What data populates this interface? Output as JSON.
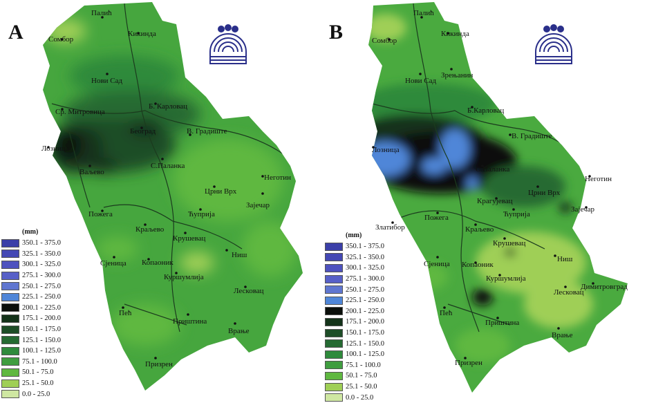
{
  "panels": [
    {
      "label": "A",
      "legend": {
        "unit": "(mm)",
        "classes": [
          {
            "range": "350.1 - 375.0",
            "color": "#3b3fa8"
          },
          {
            "range": "325.1 - 350.0",
            "color": "#4448b4"
          },
          {
            "range": "300.1 - 325.0",
            "color": "#4e52bf"
          },
          {
            "range": "275.1 - 300.0",
            "color": "#5760c8"
          },
          {
            "range": "250.1 - 275.0",
            "color": "#5f76d0"
          },
          {
            "range": "225.1 - 250.0",
            "color": "#4f86d8"
          },
          {
            "range": "200.1 - 225.0",
            "color": "#0b0f0b"
          },
          {
            "range": "175.1 - 200.0",
            "color": "#14331a"
          },
          {
            "range": "150.1 - 175.0",
            "color": "#1d4d27"
          },
          {
            "range": "125.1 - 150.0",
            "color": "#256a32"
          },
          {
            "range": "100.1 - 125.0",
            "color": "#2e8a3b"
          },
          {
            "range": "75.1 - 100.0",
            "color": "#3f9d3f"
          },
          {
            "range": "50.1 - 75.0",
            "color": "#5fb840"
          },
          {
            "range": "25.1 - 50.0",
            "color": "#9fcf56"
          },
          {
            "range": "0.0 - 25.0",
            "color": "#cfe7a2"
          }
        ]
      },
      "cities": [
        "Палић",
        "Кикинда",
        "Сомбор",
        "Нови Сад",
        "Ср. Митровица",
        "Б. Карловац",
        "Београд",
        "Лозница",
        "Ваљево",
        "С.Паланка",
        "В. Градиште",
        "Неготин",
        "Црни Врх",
        "Ћуприја",
        "Зајечар",
        "Пожега",
        "Краљево",
        "Крушевац",
        "Сјеница",
        "Копаоник",
        "Ниш",
        "Куршумлија",
        "Лесковац",
        "Пећ",
        "Приштина",
        "Врање",
        "Призрен"
      ]
    },
    {
      "label": "B",
      "legend": {
        "unit": "(mm)",
        "classes": [
          {
            "range": "350.1 - 375.0",
            "color": "#3b3fa8"
          },
          {
            "range": "325.1 - 350.0",
            "color": "#4448b4"
          },
          {
            "range": "300.1 - 325.0",
            "color": "#4e52bf"
          },
          {
            "range": "275.1 - 300.0",
            "color": "#5760c8"
          },
          {
            "range": "250.1 - 275.0",
            "color": "#5f76d0"
          },
          {
            "range": "225.1 - 250.0",
            "color": "#4f86d8"
          },
          {
            "range": "200.1 - 225.0",
            "color": "#0b0f0b"
          },
          {
            "range": "175.1 - 200.0",
            "color": "#14331a"
          },
          {
            "range": "150.1 - 175.0",
            "color": "#1d4d27"
          },
          {
            "range": "125.1 - 150.0",
            "color": "#256a32"
          },
          {
            "range": "100.1 - 125.0",
            "color": "#2e8a3b"
          },
          {
            "range": "75.1 - 100.0",
            "color": "#3f9d3f"
          },
          {
            "range": "50.1 - 75.0",
            "color": "#5fb840"
          },
          {
            "range": "25.1 - 50.0",
            "color": "#9fcf56"
          },
          {
            "range": "0.0 - 25.0",
            "color": "#cfe7a2"
          }
        ]
      },
      "cities": [
        "Палић",
        "Кикинда",
        "Сомбор",
        "Нови Сад",
        "Зрењанин",
        "Б.Карловац",
        "Лозница",
        "В. Градиште",
        "С.Паланка",
        "Неготин",
        "Црни Врх",
        "Крагујевац",
        "Ћуприја",
        "Зајечар",
        "Златибор",
        "Пожега",
        "Краљево",
        "Крушевац",
        "Сјеница",
        "Копаоник",
        "Ниш",
        "Куршумлија",
        "Димитровград",
        "Лесковац",
        "Пећ",
        "Приштина",
        "Врање",
        "Призрен"
      ]
    }
  ]
}
